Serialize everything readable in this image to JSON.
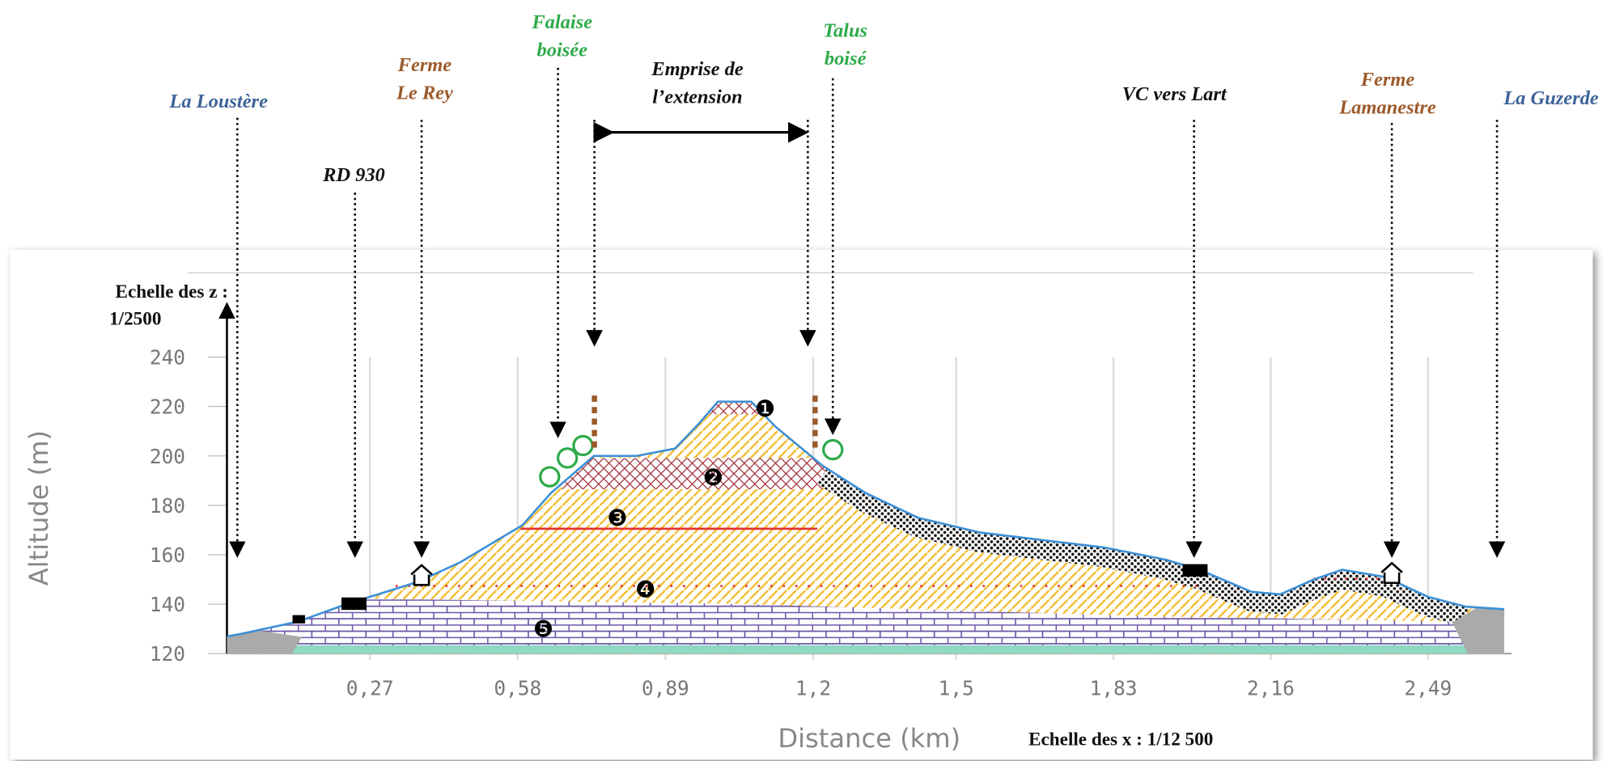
{
  "chart_data": {
    "type": "area",
    "x_label": "Distance (km)",
    "y_label": "Altitude (m)",
    "x": [
      -0.03,
      0.0,
      0.12,
      0.22,
      0.32,
      0.37,
      0.46,
      0.59,
      0.65,
      0.74,
      0.83,
      0.91,
      0.96,
      1.0,
      1.07,
      1.12,
      1.22,
      1.31,
      1.42,
      1.55,
      1.68,
      1.81,
      1.94,
      2.01,
      2.12,
      2.18,
      2.25,
      2.31,
      2.4,
      2.49,
      2.57,
      2.65
    ],
    "values": [
      127,
      128,
      133,
      140,
      146,
      149,
      157,
      172,
      185,
      200,
      200,
      203,
      213,
      222,
      222,
      212,
      196,
      185,
      175,
      169,
      166,
      163,
      158,
      154,
      145,
      144,
      150,
      154,
      151,
      143,
      139,
      138
    ],
    "color": "#3b8fd6",
    "xlim": [
      -0.03,
      2.65
    ],
    "ylim": [
      120,
      240
    ],
    "xticks": [
      {
        "value": 0.27,
        "label": "0,27"
      },
      {
        "value": 0.58,
        "label": "0,58"
      },
      {
        "value": 0.89,
        "label": "0,89"
      },
      {
        "value": 1.2,
        "label": "1,2"
      },
      {
        "value": 1.5,
        "label": "1,5"
      },
      {
        "value": 1.83,
        "label": "1,83"
      },
      {
        "value": 2.16,
        "label": "2,16"
      },
      {
        "value": 2.49,
        "label": "2,49"
      }
    ],
    "yticks": [
      120,
      140,
      160,
      180,
      200,
      220,
      240
    ],
    "grid": true
  },
  "annotations": [
    {
      "lines": [
        "La Loustère"
      ],
      "color": "#3d6399"
    },
    {
      "lines": [
        "RD 930"
      ],
      "color": "#111111"
    },
    {
      "lines": [
        "Ferme",
        "Le Rey"
      ],
      "color": "#9c5a2a"
    },
    {
      "lines": [
        "Falaise",
        "boisée"
      ],
      "color": "#2eaa4a"
    },
    {
      "lines": [
        "Emprise de",
        "l’extension"
      ],
      "color": "#111111"
    },
    {
      "lines": [
        "Talus",
        "boisé"
      ],
      "color": "#2eaa4a"
    },
    {
      "lines": [
        "VC vers Lart"
      ],
      "color": "#111111"
    },
    {
      "lines": [
        "Ferme",
        "Lamanestre"
      ],
      "color": "#9c5a2a"
    },
    {
      "lines": [
        "La Guzerde"
      ],
      "color": "#3d6399"
    }
  ],
  "layer_labels": [
    "❶",
    "❷",
    "❸",
    "❹",
    "❺"
  ],
  "scales": {
    "z": [
      "Echelle des z :",
      "1/2500"
    ],
    "x": "Echelle des x : 1/12 500"
  }
}
